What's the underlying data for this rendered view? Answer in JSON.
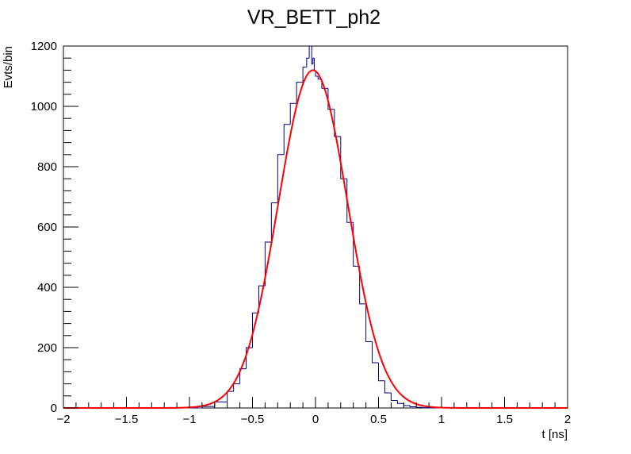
{
  "chart_data": {
    "type": "histogram",
    "title": "VR_BETT_ph2",
    "xlabel": "t [ns]",
    "ylabel": "Evts/bin",
    "xlim": [
      -2,
      2
    ],
    "ylim": [
      0,
      1200
    ],
    "x_ticks": [
      -2,
      -1.5,
      -1,
      -0.5,
      0,
      0.5,
      1,
      1.5,
      2
    ],
    "x_tick_labels": [
      "−2",
      "−1.5",
      "−1",
      "−0.5",
      "0",
      "0.5",
      "1",
      "1.5",
      "2"
    ],
    "y_ticks": [
      0,
      200,
      400,
      600,
      800,
      1000,
      1200
    ],
    "y_tick_labels": [
      "0",
      "200",
      "400",
      "600",
      "800",
      "1000",
      "1200"
    ],
    "grid": false,
    "legend": "none",
    "histogram": {
      "color": "#000080",
      "bin_edges_x": [
        -1.0,
        -0.9,
        -0.8,
        -0.7,
        -0.65,
        -0.6,
        -0.55,
        -0.5,
        -0.45,
        -0.4,
        -0.35,
        -0.3,
        -0.25,
        -0.2,
        -0.15,
        -0.1,
        -0.07,
        -0.05,
        -0.03,
        -0.02,
        -0.01,
        0.0,
        0.02,
        0.05,
        0.1,
        0.15,
        0.2,
        0.25,
        0.3,
        0.35,
        0.4,
        0.45,
        0.5,
        0.55,
        0.6,
        0.65,
        0.7,
        0.75,
        0.8,
        0.85,
        0.9,
        1.0
      ],
      "bin_values": [
        0,
        5,
        20,
        55,
        80,
        130,
        200,
        315,
        405,
        550,
        680,
        840,
        940,
        1010,
        1080,
        1130,
        1160,
        1200,
        1140,
        1160,
        1120,
        1100,
        1090,
        1060,
        990,
        900,
        760,
        615,
        470,
        345,
        220,
        150,
        90,
        50,
        25,
        15,
        8,
        4,
        2,
        1,
        0
      ]
    },
    "fit": {
      "type": "gaussian",
      "color": "#ff0000",
      "amplitude": 1120,
      "mean": -0.02,
      "sigma": 0.275
    }
  }
}
